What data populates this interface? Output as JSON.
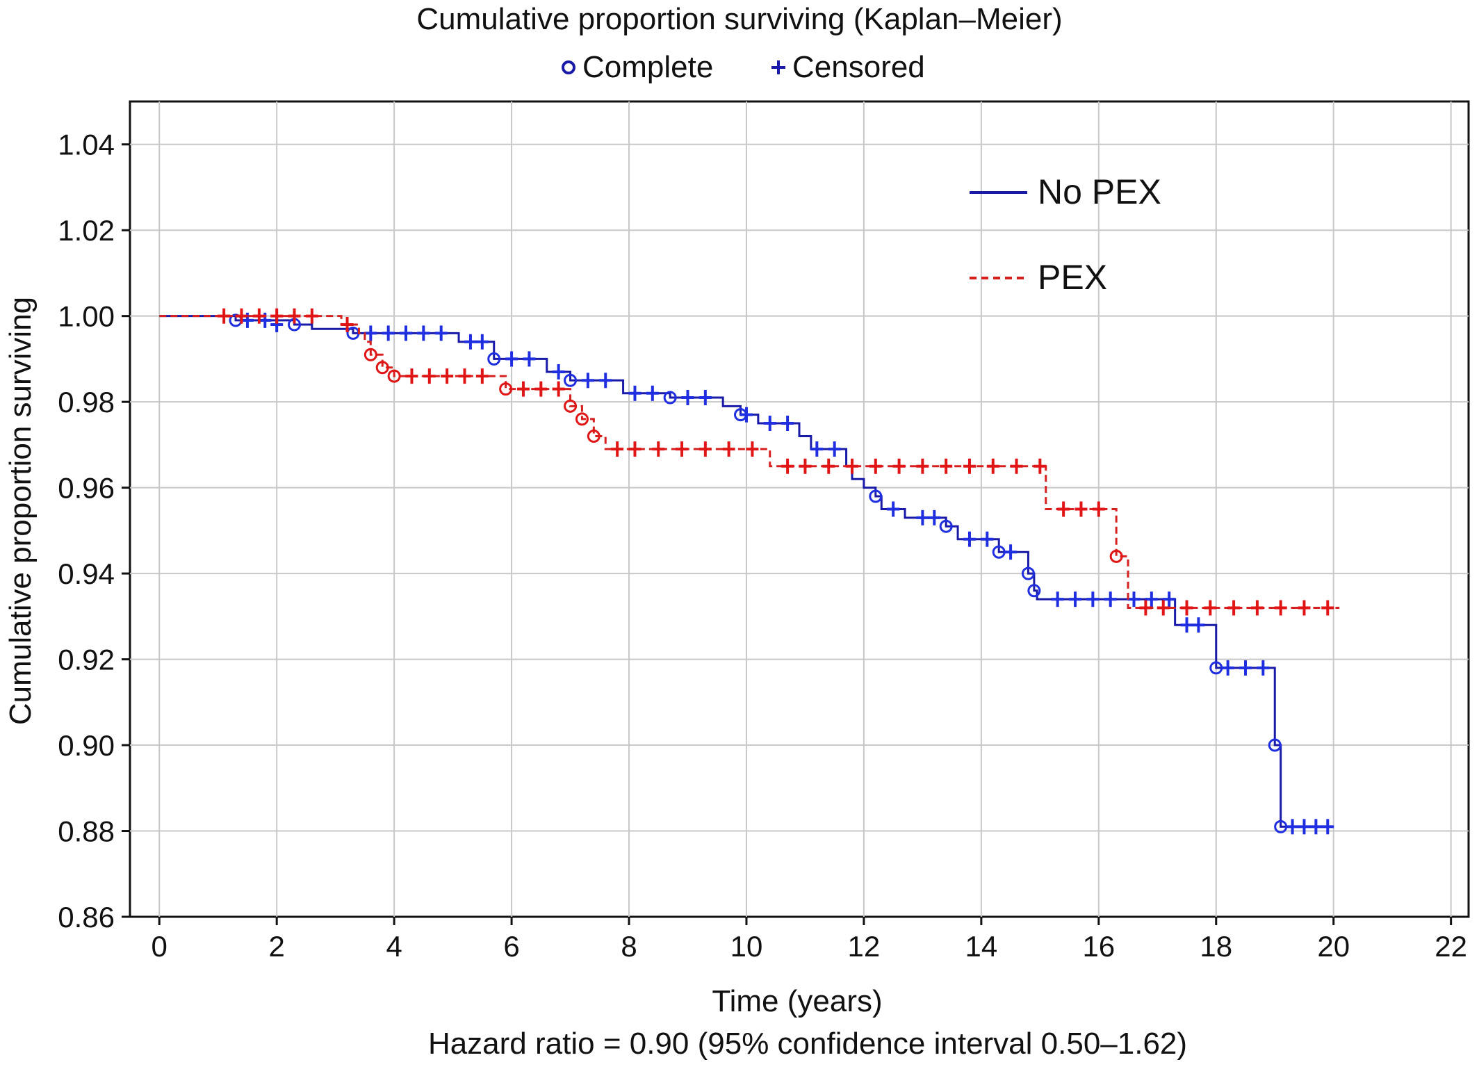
{
  "chart_data": {
    "type": "line",
    "title": "Cumulative proportion surviving (Kaplan–Meier)",
    "marker_legend": [
      {
        "label": "Complete",
        "symbol": "circle"
      },
      {
        "label": "Censored",
        "symbol": "plus"
      }
    ],
    "xlabel": "Time (years)",
    "ylabel": "Cumulative proportion surviving",
    "footer": "Hazard ratio = 0.90 (95% confidence interval 0.50–1.62)",
    "xlim": [
      -0.5,
      22.3
    ],
    "ylim": [
      0.86,
      1.05
    ],
    "x_ticks": [
      0,
      2,
      4,
      6,
      8,
      10,
      12,
      14,
      16,
      18,
      20,
      22
    ],
    "y_ticks": [
      1.04,
      1.02,
      1.0,
      0.98,
      0.96,
      0.94,
      0.92,
      0.9,
      0.88,
      0.86
    ],
    "y_tick_labels": [
      "1.04",
      "1.02",
      "1.00",
      "0.98",
      "0.96",
      "0.94",
      "0.92",
      "0.90",
      "0.88",
      "0.86"
    ],
    "x_tick_labels": [
      "0",
      "2",
      "4",
      "6",
      "8",
      "10",
      "12",
      "14",
      "16",
      "18",
      "20",
      "22"
    ],
    "grid": true,
    "legend_position": "top-right",
    "series": [
      {
        "name": "No PEX",
        "color": "#1a1aa8",
        "marker_color": "#1f2fe0",
        "style": "solid",
        "steps": [
          [
            0,
            1.0
          ],
          [
            1.3,
            0.999
          ],
          [
            2.3,
            0.998
          ],
          [
            2.6,
            0.997
          ],
          [
            3.3,
            0.996
          ],
          [
            5.1,
            0.994
          ],
          [
            5.7,
            0.99
          ],
          [
            6.6,
            0.987
          ],
          [
            7.0,
            0.985
          ],
          [
            7.9,
            0.982
          ],
          [
            8.7,
            0.981
          ],
          [
            9.6,
            0.979
          ],
          [
            9.9,
            0.977
          ],
          [
            10.2,
            0.975
          ],
          [
            10.9,
            0.972
          ],
          [
            11.1,
            0.969
          ],
          [
            11.7,
            0.965
          ],
          [
            11.8,
            0.962
          ],
          [
            12.0,
            0.96
          ],
          [
            12.2,
            0.958
          ],
          [
            12.3,
            0.955
          ],
          [
            12.7,
            0.953
          ],
          [
            13.4,
            0.951
          ],
          [
            13.6,
            0.948
          ],
          [
            14.3,
            0.945
          ],
          [
            14.8,
            0.94
          ],
          [
            14.9,
            0.936
          ],
          [
            14.95,
            0.934
          ],
          [
            17.3,
            0.928
          ],
          [
            18.0,
            0.918
          ],
          [
            19.0,
            0.9
          ],
          [
            19.1,
            0.881
          ]
        ],
        "end_x": 20.0,
        "complete_events": [
          [
            1.3,
            0.999
          ],
          [
            2.3,
            0.998
          ],
          [
            3.3,
            0.996
          ],
          [
            5.7,
            0.99
          ],
          [
            7.0,
            0.985
          ],
          [
            8.7,
            0.981
          ],
          [
            9.9,
            0.977
          ],
          [
            12.2,
            0.958
          ],
          [
            13.4,
            0.951
          ],
          [
            14.3,
            0.945
          ],
          [
            14.8,
            0.94
          ],
          [
            14.9,
            0.936
          ],
          [
            18.0,
            0.918
          ],
          [
            19.0,
            0.9
          ],
          [
            19.1,
            0.881
          ]
        ],
        "censored": [
          [
            1.5,
            0.999
          ],
          [
            1.8,
            0.999
          ],
          [
            2.0,
            0.998
          ],
          [
            3.6,
            0.996
          ],
          [
            3.9,
            0.996
          ],
          [
            4.2,
            0.996
          ],
          [
            4.5,
            0.996
          ],
          [
            4.8,
            0.996
          ],
          [
            5.3,
            0.994
          ],
          [
            5.5,
            0.994
          ],
          [
            6.0,
            0.99
          ],
          [
            6.3,
            0.99
          ],
          [
            6.8,
            0.987
          ],
          [
            7.3,
            0.985
          ],
          [
            7.6,
            0.985
          ],
          [
            8.1,
            0.982
          ],
          [
            8.4,
            0.982
          ],
          [
            9.0,
            0.981
          ],
          [
            9.3,
            0.981
          ],
          [
            10.0,
            0.977
          ],
          [
            10.4,
            0.975
          ],
          [
            10.7,
            0.975
          ],
          [
            11.2,
            0.969
          ],
          [
            11.5,
            0.969
          ],
          [
            12.5,
            0.955
          ],
          [
            13.0,
            0.953
          ],
          [
            13.2,
            0.953
          ],
          [
            13.8,
            0.948
          ],
          [
            14.1,
            0.948
          ],
          [
            14.5,
            0.945
          ],
          [
            15.3,
            0.934
          ],
          [
            15.6,
            0.934
          ],
          [
            15.9,
            0.934
          ],
          [
            16.2,
            0.934
          ],
          [
            16.6,
            0.934
          ],
          [
            16.9,
            0.934
          ],
          [
            17.2,
            0.934
          ],
          [
            17.5,
            0.928
          ],
          [
            17.7,
            0.928
          ],
          [
            18.2,
            0.918
          ],
          [
            18.5,
            0.918
          ],
          [
            18.8,
            0.918
          ],
          [
            19.3,
            0.881
          ],
          [
            19.5,
            0.881
          ],
          [
            19.7,
            0.881
          ],
          [
            19.9,
            0.881
          ]
        ]
      },
      {
        "name": "PEX",
        "color": "#d62020",
        "marker_color": "#e01515",
        "style": "dashed",
        "steps": [
          [
            0,
            1.0
          ],
          [
            3.1,
            0.998
          ],
          [
            3.4,
            0.996
          ],
          [
            3.5,
            0.994
          ],
          [
            3.6,
            0.991
          ],
          [
            3.8,
            0.988
          ],
          [
            4.0,
            0.986
          ],
          [
            5.9,
            0.983
          ],
          [
            7.0,
            0.979
          ],
          [
            7.2,
            0.976
          ],
          [
            7.4,
            0.972
          ],
          [
            7.6,
            0.969
          ],
          [
            10.4,
            0.965
          ],
          [
            15.1,
            0.955
          ],
          [
            16.3,
            0.944
          ],
          [
            16.5,
            0.932
          ]
        ],
        "end_x": 20.1,
        "complete_events": [
          [
            3.6,
            0.991
          ],
          [
            3.8,
            0.988
          ],
          [
            4.0,
            0.986
          ],
          [
            5.9,
            0.983
          ],
          [
            7.0,
            0.979
          ],
          [
            7.2,
            0.976
          ],
          [
            7.4,
            0.972
          ],
          [
            16.3,
            0.944
          ]
        ],
        "censored": [
          [
            1.1,
            1.0
          ],
          [
            1.4,
            1.0
          ],
          [
            1.7,
            1.0
          ],
          [
            2.0,
            1.0
          ],
          [
            2.3,
            1.0
          ],
          [
            2.6,
            1.0
          ],
          [
            3.2,
            0.998
          ],
          [
            4.3,
            0.986
          ],
          [
            4.6,
            0.986
          ],
          [
            4.9,
            0.986
          ],
          [
            5.2,
            0.986
          ],
          [
            5.5,
            0.986
          ],
          [
            6.2,
            0.983
          ],
          [
            6.5,
            0.983
          ],
          [
            6.8,
            0.983
          ],
          [
            7.8,
            0.969
          ],
          [
            8.1,
            0.969
          ],
          [
            8.5,
            0.969
          ],
          [
            8.9,
            0.969
          ],
          [
            9.3,
            0.969
          ],
          [
            9.7,
            0.969
          ],
          [
            10.1,
            0.969
          ],
          [
            10.7,
            0.965
          ],
          [
            11.0,
            0.965
          ],
          [
            11.4,
            0.965
          ],
          [
            11.8,
            0.965
          ],
          [
            12.2,
            0.965
          ],
          [
            12.6,
            0.965
          ],
          [
            13.0,
            0.965
          ],
          [
            13.4,
            0.965
          ],
          [
            13.8,
            0.965
          ],
          [
            14.2,
            0.965
          ],
          [
            14.6,
            0.965
          ],
          [
            15.0,
            0.965
          ],
          [
            15.4,
            0.955
          ],
          [
            15.7,
            0.955
          ],
          [
            16.0,
            0.955
          ],
          [
            16.8,
            0.932
          ],
          [
            17.1,
            0.932
          ],
          [
            17.5,
            0.932
          ],
          [
            17.9,
            0.932
          ],
          [
            18.3,
            0.932
          ],
          [
            18.7,
            0.932
          ],
          [
            19.1,
            0.932
          ],
          [
            19.5,
            0.932
          ],
          [
            19.9,
            0.932
          ]
        ]
      }
    ]
  }
}
